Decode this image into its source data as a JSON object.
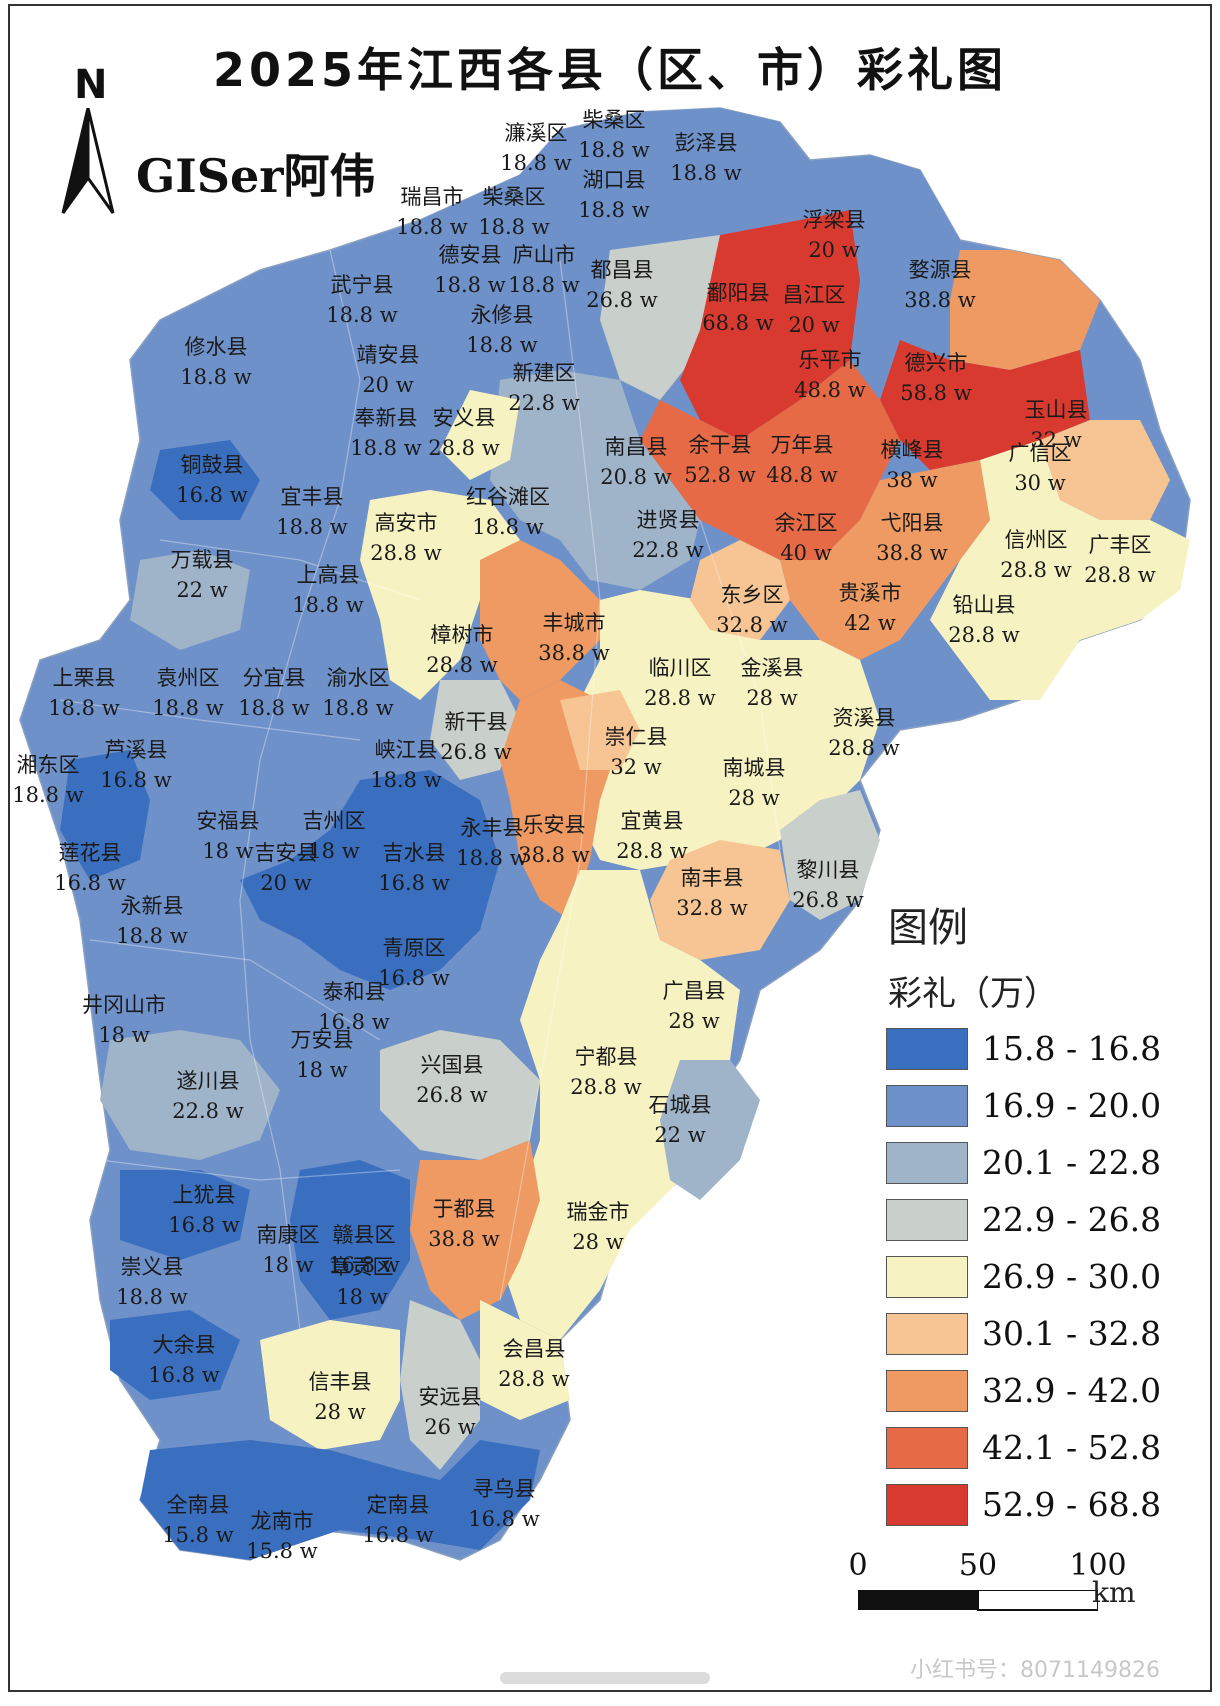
{
  "title": "2025年江西各县（区、市）彩礼图",
  "north_label": "N",
  "author": "GISer阿伟",
  "legend": {
    "title": "图例",
    "subtitle": "彩礼（万）",
    "classes": [
      {
        "range": "15.8 - 16.8",
        "color": "#3a6fc0"
      },
      {
        "range": "16.9 - 20.0",
        "color": "#6f91c9"
      },
      {
        "range": "20.1 - 22.8",
        "color": "#9fb3c9"
      },
      {
        "range": "22.9 - 26.8",
        "color": "#c9cfca"
      },
      {
        "range": "26.9 - 30.0",
        "color": "#f7f2c2"
      },
      {
        "range": "30.1 - 32.8",
        "color": "#f6c593"
      },
      {
        "range": "32.9 - 42.0",
        "color": "#ee9a62"
      },
      {
        "range": "42.1 - 52.8",
        "color": "#e56a45"
      },
      {
        "range": "52.9 - 68.8",
        "color": "#d93a30"
      }
    ]
  },
  "scale_bar": {
    "labels": [
      "0",
      "50",
      "100"
    ],
    "unit": "km"
  },
  "watermark": "小红书号：8071149826",
  "counties": [
    {
      "name": "濂溪区",
      "value": "18.8 w"
    },
    {
      "name": "柴桑区",
      "value": "18.8 w"
    },
    {
      "name": "彭泽县",
      "value": "18.8 w"
    },
    {
      "name": "湖口县",
      "value": "18.8 w"
    },
    {
      "name": "瑞昌市",
      "value": "18.8 w"
    },
    {
      "name": "柴桑区",
      "value": "18.8 w"
    },
    {
      "name": "德安县",
      "value": "18.8 w"
    },
    {
      "name": "庐山市",
      "value": "18.8 w"
    },
    {
      "name": "都昌县",
      "value": "26.8 w"
    },
    {
      "name": "浮梁县",
      "value": "20 w"
    },
    {
      "name": "婺源县",
      "value": "38.8 w"
    },
    {
      "name": "鄱阳县",
      "value": "68.8 w"
    },
    {
      "name": "昌江区",
      "value": "20 w"
    },
    {
      "name": "武宁县",
      "value": "18.8 w"
    },
    {
      "name": "永修县",
      "value": "18.8 w"
    },
    {
      "name": "修水县",
      "value": "18.8 w"
    },
    {
      "name": "靖安县",
      "value": "20 w"
    },
    {
      "name": "新建区",
      "value": "22.8 w"
    },
    {
      "name": "乐平市",
      "value": "48.8 w"
    },
    {
      "name": "德兴市",
      "value": "58.8 w"
    },
    {
      "name": "玉山县",
      "value": "32 w"
    },
    {
      "name": "奉新县",
      "value": "18.8 w"
    },
    {
      "name": "安义县",
      "value": "28.8 w"
    },
    {
      "name": "南昌县",
      "value": "20.8 w"
    },
    {
      "name": "余干县",
      "value": "52.8 w"
    },
    {
      "name": "万年县",
      "value": "48.8 w"
    },
    {
      "name": "横峰县",
      "value": "38 w"
    },
    {
      "name": "广信区",
      "value": "30 w"
    },
    {
      "name": "铜鼓县",
      "value": "16.8 w"
    },
    {
      "name": "宜丰县",
      "value": "18.8 w"
    },
    {
      "name": "红谷滩区",
      "value": "18.8 w"
    },
    {
      "name": "高安市",
      "value": "28.8 w"
    },
    {
      "name": "进贤县",
      "value": "22.8 w"
    },
    {
      "name": "余江区",
      "value": "40 w"
    },
    {
      "name": "弋阳县",
      "value": "38.8 w"
    },
    {
      "name": "信州区",
      "value": "28.8 w"
    },
    {
      "name": "广丰区",
      "value": "28.8 w"
    },
    {
      "name": "万载县",
      "value": "22 w"
    },
    {
      "name": "上高县",
      "value": "18.8 w"
    },
    {
      "name": "丰城市",
      "value": "38.8 w"
    },
    {
      "name": "东乡区",
      "value": "32.8 w"
    },
    {
      "name": "贵溪市",
      "value": "42 w"
    },
    {
      "name": "铅山县",
      "value": "28.8 w"
    },
    {
      "name": "樟树市",
      "value": "28.8 w"
    },
    {
      "name": "临川区",
      "value": "28.8 w"
    },
    {
      "name": "金溪县",
      "value": "28 w"
    },
    {
      "name": "上栗县",
      "value": "18.8 w"
    },
    {
      "name": "袁州区",
      "value": "18.8 w"
    },
    {
      "name": "分宜县",
      "value": "18.8 w"
    },
    {
      "name": "渝水区",
      "value": "18.8 w"
    },
    {
      "name": "资溪县",
      "value": "28.8 w"
    },
    {
      "name": "新干县",
      "value": "26.8 w"
    },
    {
      "name": "崇仁县",
      "value": "32 w"
    },
    {
      "name": "湘东区",
      "value": "18.8 w"
    },
    {
      "name": "芦溪县",
      "value": "16.8 w"
    },
    {
      "name": "峡江县",
      "value": "18.8 w"
    },
    {
      "name": "南城县",
      "value": "28 w"
    },
    {
      "name": "安福县",
      "value": "18 w"
    },
    {
      "name": "吉州区",
      "value": "18 w"
    },
    {
      "name": "永丰县",
      "value": "18.8 w"
    },
    {
      "name": "乐安县",
      "value": "38.8 w"
    },
    {
      "name": "宜黄县",
      "value": "28.8 w"
    },
    {
      "name": "莲花县",
      "value": "16.8 w"
    },
    {
      "name": "吉安县",
      "value": "20 w"
    },
    {
      "name": "吉水县",
      "value": "16.8 w"
    },
    {
      "name": "黎川县",
      "value": "26.8 w"
    },
    {
      "name": "南丰县",
      "value": "32.8 w"
    },
    {
      "name": "永新县",
      "value": "18.8 w"
    },
    {
      "name": "青原区",
      "value": "16.8 w"
    },
    {
      "name": "泰和县",
      "value": "16.8 w"
    },
    {
      "name": "广昌县",
      "value": "28 w"
    },
    {
      "name": "井冈山市",
      "value": "18 w"
    },
    {
      "name": "万安县",
      "value": "18 w"
    },
    {
      "name": "兴国县",
      "value": "26.8 w"
    },
    {
      "name": "宁都县",
      "value": "28.8 w"
    },
    {
      "name": "遂川县",
      "value": "22.8 w"
    },
    {
      "name": "石城县",
      "value": "22 w"
    },
    {
      "name": "上犹县",
      "value": "16.8 w"
    },
    {
      "name": "南康区",
      "value": "18 w"
    },
    {
      "name": "赣县区",
      "value": "16.8 w"
    },
    {
      "name": "于都县",
      "value": "38.8 w"
    },
    {
      "name": "瑞金市",
      "value": "28 w"
    },
    {
      "name": "崇义县",
      "value": "18.8 w"
    },
    {
      "name": "章贡区",
      "value": "18 w"
    },
    {
      "name": "大余县",
      "value": "16.8 w"
    },
    {
      "name": "会昌县",
      "value": "28.8 w"
    },
    {
      "name": "信丰县",
      "value": "28 w"
    },
    {
      "name": "安远县",
      "value": "26 w"
    },
    {
      "name": "全南县",
      "value": "15.8 w"
    },
    {
      "name": "龙南市",
      "value": "15.8 w"
    },
    {
      "name": "定南县",
      "value": "16.8 w"
    },
    {
      "name": "寻乌县",
      "value": "16.8 w"
    }
  ]
}
